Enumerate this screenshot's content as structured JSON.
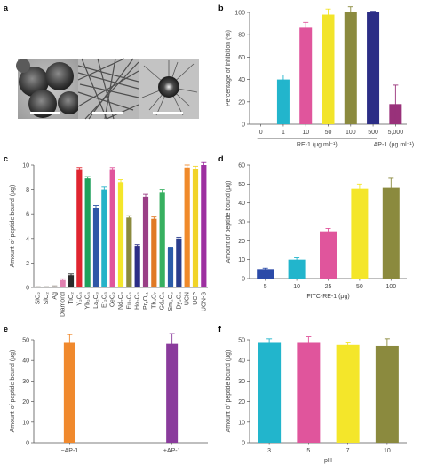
{
  "panel_labels": {
    "a": "a",
    "b": "b",
    "c": "c",
    "d": "d",
    "e": "e",
    "f": "f"
  },
  "panel_a": {
    "images": [
      "tem-nanoparticles",
      "tem-nanorods",
      "tem-urchin-particle"
    ]
  },
  "chart_data": [
    {
      "id": "b",
      "type": "bar",
      "ylabel": "Percentage of inhibition (%)",
      "ylim": [
        0,
        100
      ],
      "yticks": [
        0,
        20,
        40,
        60,
        80,
        100
      ],
      "categories": [
        "0",
        "1",
        "10",
        "50",
        "100",
        "500",
        "5,000"
      ],
      "values": [
        0,
        40,
        87,
        98,
        100,
        100,
        18
      ],
      "errors": [
        0,
        4,
        4,
        5,
        5,
        1,
        17
      ],
      "colors": [
        "#ffffff",
        "#22b5cc",
        "#e0559c",
        "#f2e42a",
        "#8b8a3e",
        "#2b2d86",
        "#99317a"
      ],
      "group_labels": [
        "RE-1 (μg ml⁻¹)",
        "AP-1 (μg ml⁻¹)"
      ],
      "grid": false
    },
    {
      "id": "c",
      "type": "bar",
      "ylabel": "Amount of peptide bound (μg)",
      "ylim": [
        0,
        10
      ],
      "yticks": [
        0,
        2,
        4,
        6,
        8,
        10
      ],
      "categories": [
        "SiO₂",
        "SiO₂",
        "Ag",
        "Diamond",
        "TiO₂",
        "Y₂O₃",
        "Yb₂O₃",
        "La₂O₃",
        "Er₂O₃",
        "CeO₂",
        "Nd₂O₃",
        "Eu₂O₃",
        "Ho₂O₃",
        "Pr₆O₁₁",
        "Tb₄O₇",
        "Gd₂O₃",
        "Sm₂O₃",
        "Dy₂O₃",
        "UCN",
        "UCP",
        "UCN-S"
      ],
      "values": [
        0.05,
        0.05,
        0.1,
        0.6,
        1.0,
        9.6,
        8.9,
        6.5,
        8.0,
        9.6,
        8.6,
        5.7,
        3.4,
        7.4,
        5.6,
        7.8,
        3.2,
        4.0,
        9.8,
        9.7,
        10.0
      ],
      "errors": [
        0.02,
        0.02,
        0.04,
        0.1,
        0.1,
        0.2,
        0.15,
        0.2,
        0.2,
        0.2,
        0.2,
        0.15,
        0.1,
        0.2,
        0.15,
        0.2,
        0.1,
        0.1,
        0.2,
        0.2,
        0.2
      ],
      "colors": [
        "#b7b2ad",
        "#b7b2ad",
        "#b7b2ad",
        "#e080b0",
        "#2a2a2a",
        "#e02530",
        "#20a15c",
        "#2f57a6",
        "#26b3c8",
        "#e0559c",
        "#f4e62a",
        "#8b8a3e",
        "#2b2d86",
        "#9a3f86",
        "#e07a25",
        "#37b060",
        "#2b5ca8",
        "#2a3d8c",
        "#f08a2a",
        "#f1d428",
        "#9d2fa0"
      ],
      "grid": false
    },
    {
      "id": "d",
      "type": "bar",
      "ylabel": "Amount of peptide bound (μg)",
      "xlabel": "FITC-RE-1 (μg)",
      "ylim": [
        0,
        60
      ],
      "yticks": [
        0,
        10,
        20,
        30,
        40,
        50,
        60
      ],
      "categories": [
        "5",
        "10",
        "25",
        "50",
        "100"
      ],
      "values": [
        5,
        10,
        25,
        47.5,
        48
      ],
      "errors": [
        0.5,
        1,
        1.5,
        2.5,
        5
      ],
      "colors": [
        "#2b4aa8",
        "#22b5cc",
        "#e0559c",
        "#f4e62a",
        "#8b8a3e"
      ],
      "grid": false
    },
    {
      "id": "e",
      "type": "bar",
      "ylabel": "Amount of peptide bound (μg)",
      "ylim": [
        0,
        50
      ],
      "yticks": [
        0,
        10,
        20,
        30,
        40,
        50
      ],
      "categories": [
        "−AP-1",
        "+AP-1"
      ],
      "values": [
        48.5,
        48
      ],
      "errors": [
        4,
        5
      ],
      "colors": [
        "#f0892d",
        "#8a3b9c"
      ],
      "grid": false
    },
    {
      "id": "f",
      "type": "bar",
      "ylabel": "Amount of peptide bound (μg)",
      "xlabel": "pH",
      "ylim": [
        0,
        50
      ],
      "yticks": [
        0,
        10,
        20,
        30,
        40,
        50
      ],
      "categories": [
        "3",
        "5",
        "7",
        "10"
      ],
      "values": [
        48.5,
        48.5,
        47.5,
        47
      ],
      "errors": [
        2,
        3,
        1,
        3.5
      ],
      "colors": [
        "#22b5cc",
        "#e0559c",
        "#f4e62a",
        "#8b8a3e"
      ],
      "grid": false
    }
  ]
}
